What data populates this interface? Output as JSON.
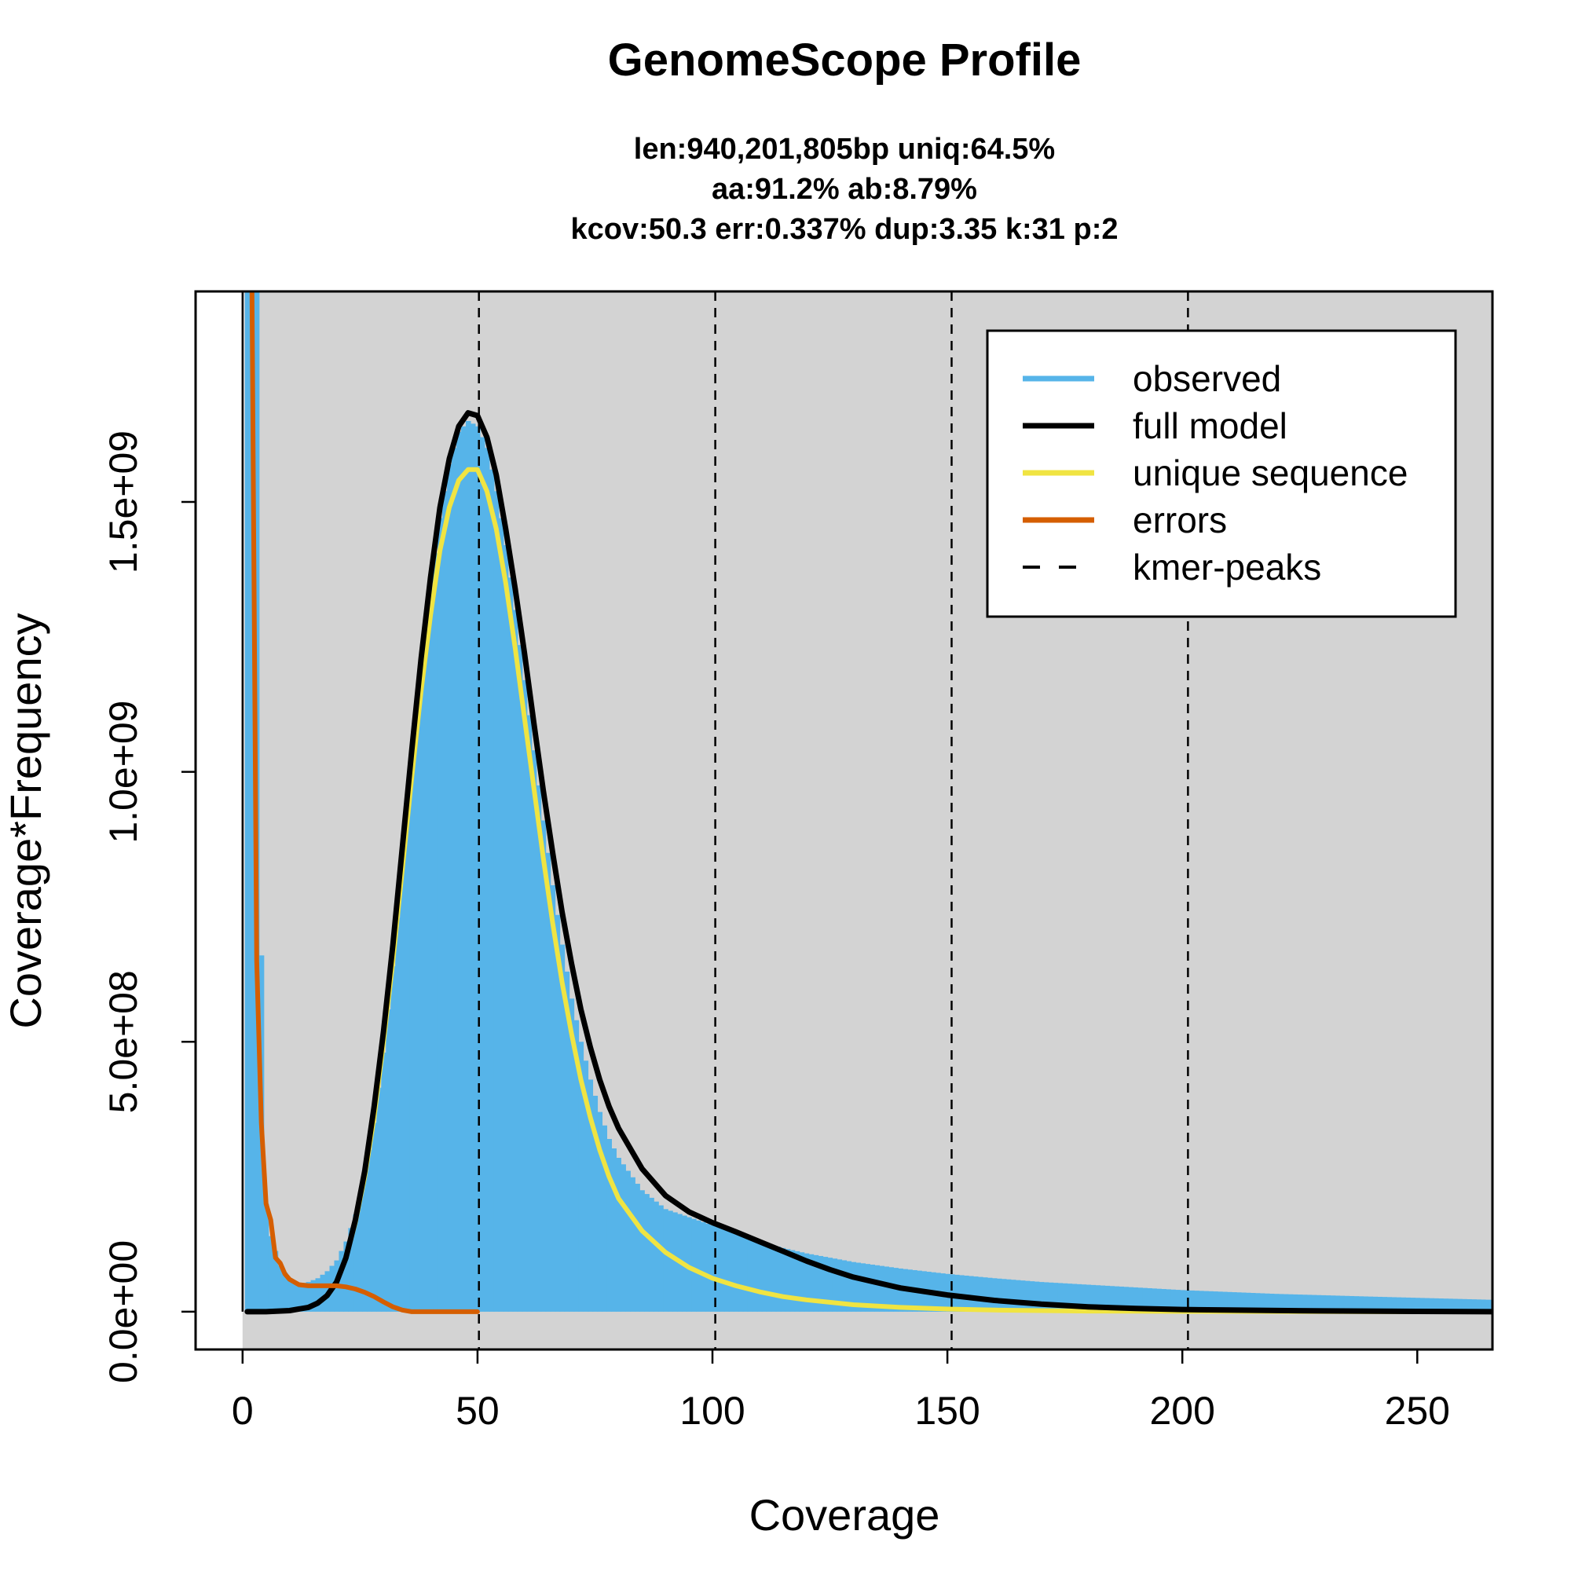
{
  "chart_data": {
    "type": "area",
    "title": "GenomeScope Profile",
    "subtitle_lines": [
      "len:940,201,805bp uniq:64.5%",
      "aa:91.2% ab:8.79%",
      "kcov:50.3 err:0.337%  dup:3.35  k:31 p:2"
    ],
    "xlabel": "Coverage",
    "ylabel": "Coverage*Frequency",
    "xlim": [
      -10,
      266
    ],
    "ylim": [
      -70000000,
      1890000000
    ],
    "x_ticks": [
      0,
      50,
      100,
      150,
      200,
      250
    ],
    "x_tick_labels": [
      "0",
      "50",
      "100",
      "150",
      "200",
      "250"
    ],
    "y_ticks": [
      0,
      500000000,
      1000000000,
      1500000000
    ],
    "y_tick_labels": [
      "0.0e+00",
      "5.0e+08",
      "1.0e+09",
      "1.5e+09"
    ],
    "background_color": "#d3d3d3",
    "grid": false,
    "legend_position": "top-right",
    "kmer_peaks": [
      50.3,
      100.6,
      150.9,
      201.2
    ],
    "series": [
      {
        "name": "observed",
        "style": "histogram",
        "color": "#56b4e9",
        "x": [
          1,
          2,
          3,
          4,
          5,
          6,
          8,
          10,
          12,
          14,
          16,
          18,
          20,
          22,
          24,
          26,
          28,
          30,
          32,
          34,
          36,
          38,
          40,
          42,
          44,
          46,
          48,
          50,
          52,
          54,
          56,
          58,
          60,
          62,
          64,
          66,
          68,
          70,
          72,
          74,
          76,
          78,
          80,
          85,
          90,
          95,
          100,
          105,
          110,
          115,
          120,
          130,
          140,
          150,
          160,
          170,
          180,
          190,
          200,
          220,
          240,
          266
        ],
        "y": [
          1890000000,
          1890000000,
          1890000000,
          660000000,
          200000000,
          140000000,
          85000000,
          60000000,
          52000000,
          55000000,
          62000000,
          75000000,
          95000000,
          130000000,
          180000000,
          250000000,
          350000000,
          480000000,
          640000000,
          820000000,
          1000000000,
          1180000000,
          1340000000,
          1470000000,
          1570000000,
          1630000000,
          1650000000,
          1640000000,
          1600000000,
          1520000000,
          1420000000,
          1300000000,
          1170000000,
          1040000000,
          910000000,
          790000000,
          680000000,
          580000000,
          500000000,
          430000000,
          370000000,
          320000000,
          285000000,
          225000000,
          190000000,
          175000000,
          160000000,
          145000000,
          130000000,
          118000000,
          108000000,
          92000000,
          80000000,
          70000000,
          62000000,
          55000000,
          50000000,
          45000000,
          40000000,
          33000000,
          28000000,
          22000000
        ]
      },
      {
        "name": "full model",
        "style": "line",
        "color": "#000000",
        "x": [
          1,
          5,
          10,
          14,
          16,
          18,
          20,
          22,
          24,
          26,
          28,
          30,
          32,
          34,
          36,
          38,
          40,
          42,
          44,
          46,
          48,
          50,
          52,
          54,
          56,
          58,
          60,
          62,
          64,
          66,
          68,
          70,
          72,
          74,
          76,
          78,
          80,
          85,
          90,
          95,
          100,
          105,
          110,
          115,
          120,
          125,
          130,
          140,
          150,
          160,
          170,
          180,
          190,
          200,
          210,
          230,
          250,
          266
        ],
        "y": [
          0,
          0,
          2000000,
          8000000,
          16000000,
          30000000,
          55000000,
          100000000,
          170000000,
          260000000,
          380000000,
          520000000,
          680000000,
          860000000,
          1040000000,
          1210000000,
          1360000000,
          1490000000,
          1580000000,
          1640000000,
          1665000000,
          1660000000,
          1620000000,
          1550000000,
          1450000000,
          1340000000,
          1220000000,
          1090000000,
          965000000,
          850000000,
          740000000,
          645000000,
          560000000,
          490000000,
          430000000,
          380000000,
          340000000,
          265000000,
          215000000,
          185000000,
          165000000,
          148000000,
          130000000,
          112000000,
          94000000,
          78000000,
          64000000,
          44000000,
          31000000,
          21000000,
          14000000,
          9000000,
          6000000,
          4000000,
          3000000,
          1500000,
          500000,
          0
        ]
      },
      {
        "name": "unique sequence",
        "style": "line",
        "color": "#f0e442",
        "x": [
          14,
          16,
          18,
          20,
          22,
          24,
          26,
          28,
          30,
          32,
          34,
          36,
          38,
          40,
          42,
          44,
          46,
          48,
          50,
          52,
          54,
          56,
          58,
          60,
          62,
          64,
          66,
          68,
          70,
          72,
          74,
          76,
          78,
          80,
          85,
          90,
          95,
          100,
          105,
          110,
          115,
          120,
          130,
          140,
          150,
          160,
          170,
          180,
          190,
          200,
          230,
          266
        ],
        "y": [
          8000000,
          16000000,
          30000000,
          55000000,
          100000000,
          165000000,
          250000000,
          360000000,
          500000000,
          650000000,
          820000000,
          990000000,
          1150000000,
          1290000000,
          1410000000,
          1490000000,
          1540000000,
          1560000000,
          1560000000,
          1520000000,
          1450000000,
          1350000000,
          1230000000,
          1100000000,
          970000000,
          840000000,
          720000000,
          610000000,
          515000000,
          430000000,
          360000000,
          300000000,
          250000000,
          210000000,
          150000000,
          110000000,
          82000000,
          62000000,
          48000000,
          37000000,
          28000000,
          22000000,
          13000000,
          8000000,
          5000000,
          3000000,
          2000000,
          1200000,
          800000,
          500000,
          200000,
          0
        ]
      },
      {
        "name": "errors",
        "style": "line",
        "color": "#d55e00",
        "x": [
          2,
          3,
          4,
          5,
          6,
          7,
          8,
          9,
          10,
          12,
          14,
          16,
          18,
          20,
          22,
          24,
          26,
          28,
          30,
          32,
          34,
          36,
          40,
          45,
          50
        ],
        "y": [
          1890000000,
          650000000,
          350000000,
          200000000,
          170000000,
          100000000,
          90000000,
          70000000,
          60000000,
          50000000,
          48000000,
          48000000,
          48000000,
          48000000,
          46000000,
          42000000,
          36000000,
          28000000,
          18000000,
          9000000,
          3000000,
          0,
          0,
          0,
          0
        ]
      }
    ],
    "legend": [
      {
        "label": "observed",
        "color": "#56b4e9",
        "style": "solid"
      },
      {
        "label": "full model",
        "color": "#000000",
        "style": "solid"
      },
      {
        "label": "unique sequence",
        "color": "#f0e442",
        "style": "solid"
      },
      {
        "label": "errors",
        "color": "#d55e00",
        "style": "solid"
      },
      {
        "label": "kmer-peaks",
        "color": "#000000",
        "style": "dashed"
      }
    ]
  }
}
